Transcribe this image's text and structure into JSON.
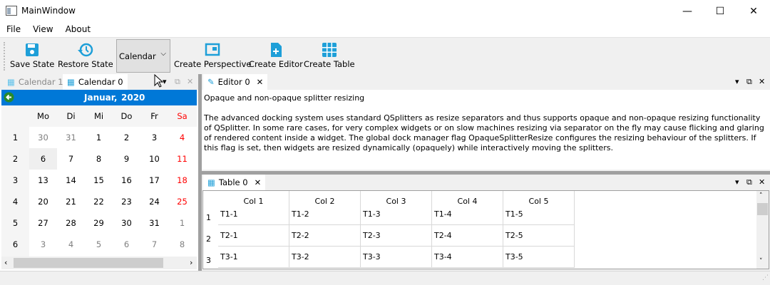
{
  "window": {
    "title": "MainWindow",
    "minimize": "—",
    "maximize": "☐",
    "close": "✕"
  },
  "menu": [
    "File",
    "View",
    "About"
  ],
  "toolbar": {
    "save": "Save State",
    "restore": "Restore State",
    "combo": "Calendar",
    "perspective": "Create Perspective",
    "editor": "Create Editor",
    "table": "Create Table"
  },
  "left_dock": {
    "tabs": [
      "Calendar 1",
      "Calendar 0"
    ],
    "active_tab": 1
  },
  "calendar": {
    "month": "Januar,",
    "year": "2020",
    "days": [
      "Mo",
      "Di",
      "Mi",
      "Do",
      "Fr",
      "Sa"
    ],
    "weeks": [
      "1",
      "2",
      "3",
      "4",
      "5",
      "6"
    ],
    "dates": [
      [
        "30",
        "31",
        "1",
        "2",
        "3",
        "4"
      ],
      [
        "6",
        "7",
        "8",
        "9",
        "10",
        "11"
      ],
      [
        "13",
        "14",
        "15",
        "16",
        "17",
        "18"
      ],
      [
        "20",
        "21",
        "22",
        "23",
        "24",
        "25"
      ],
      [
        "27",
        "28",
        "29",
        "30",
        "31",
        "1"
      ],
      [
        "3",
        "4",
        "5",
        "6",
        "7",
        "8"
      ]
    ],
    "selected": "6",
    "colors": {
      "accent": "#0078d7",
      "weekend": "#ff0000",
      "other_month": "#808080"
    }
  },
  "editor": {
    "tab": "Editor 0",
    "title": "Opaque and non-opaque splitter resizing",
    "body": "The advanced docking system uses standard QSplitters as resize separators and thus supports opaque and non-opaque resizing functionality of QSplitter. In some rare cases, for very complex widgets or on slow machines resizing via separator on the fly may cause flicking and glaring of rendered content inside a widget. The global dock manager flag OpaqueSplitterResize configures the resizing behaviour of the splitters. If this flag is set, then widgets are resized dynamically (opaquely) while interactively moving the splitters."
  },
  "table": {
    "tab": "Table 0",
    "columns": [
      "Col 1",
      "Col 2",
      "Col 3",
      "Col 4",
      "Col 5"
    ],
    "rows": [
      "1",
      "2",
      "3"
    ],
    "cells": [
      [
        "T1-1",
        "T1-2",
        "T1-3",
        "T1-4",
        "T1-5"
      ],
      [
        "T2-1",
        "T2-2",
        "T2-3",
        "T2-4",
        "T2-5"
      ],
      [
        "T3-1",
        "T3-2",
        "T3-3",
        "T3-4",
        "T3-5"
      ]
    ]
  }
}
